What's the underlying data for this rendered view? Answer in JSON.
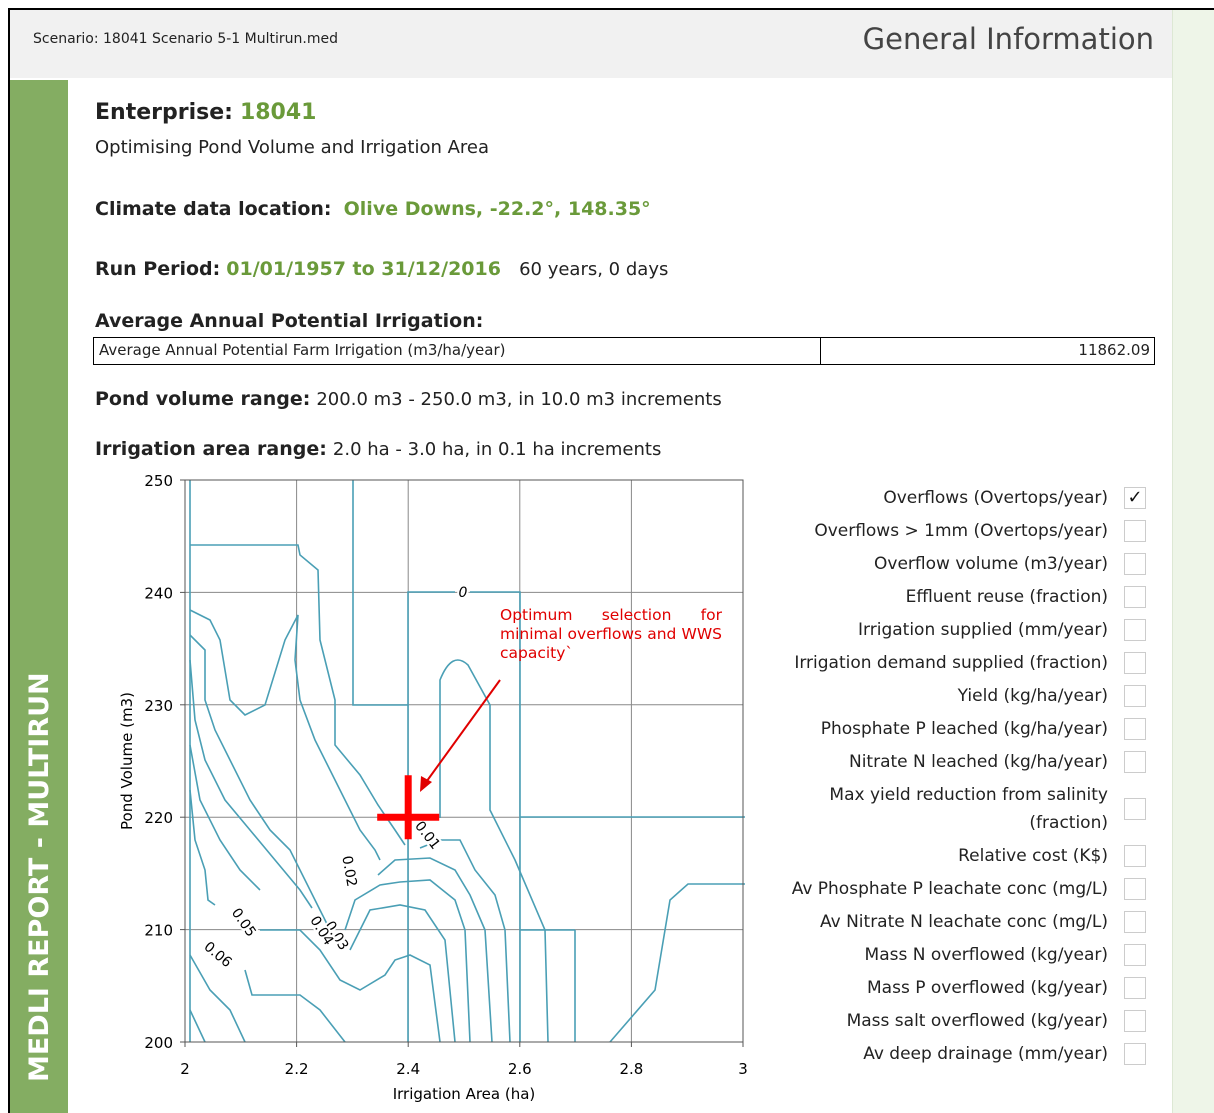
{
  "header": {
    "scenario": "Scenario: 18041 Scenario 5-1 Multirun.med",
    "section": "General Information"
  },
  "sidebar": "MEDLI REPORT - MULTIRUN",
  "enterprise": {
    "label": "Enterprise:",
    "value": "18041",
    "description": "Optimising Pond Volume and Irrigation Area"
  },
  "climate": {
    "label": "Climate data location:",
    "value": "Olive Downs, -22.2°, 148.35°"
  },
  "run_period": {
    "label": "Run Period:",
    "value": "01/01/1957 to 31/12/2016",
    "duration": "60 years, 0 days"
  },
  "irrigation": {
    "heading": "Average Annual Potential Irrigation:",
    "table": {
      "rows": [
        [
          "Average Annual Potential Farm Irrigation (m3/ha/year)",
          "11862.09"
        ]
      ]
    }
  },
  "ranges": [
    {
      "label": "Pond volume range:",
      "value": "200.0 m3 - 250.0 m3, in 10.0 m3 increments"
    },
    {
      "label": "Irrigation area range:",
      "value": "2.0 ha - 3.0 ha, in 0.1 ha increments"
    }
  ],
  "chart_data": {
    "type": "contour",
    "x_label": "Irrigation Area (ha)",
    "y_label": "Pond Volume (m3)",
    "xlim": [
      2,
      3
    ],
    "ylim": [
      200,
      250
    ],
    "xticks": [
      2,
      2.2,
      2.4,
      2.6,
      2.8,
      3
    ],
    "yticks": [
      200,
      210,
      220,
      230,
      240,
      250
    ],
    "grid": true,
    "line_color": "#4a9fb5",
    "contour_labels": [
      0,
      0.01,
      0.02,
      0.03,
      0.04,
      0.05,
      0.06
    ],
    "annotation": "Optimum selection for minimal overflows and WWS capacity`",
    "marker": {
      "x": 2.4,
      "y": 220,
      "color": "#ff0000"
    }
  },
  "options": [
    {
      "label": "Overflows (Overtops/year)",
      "checked": true
    },
    {
      "label": "Overflows > 1mm (Overtops/year)",
      "checked": false
    },
    {
      "label": "Overflow volume (m3/year)",
      "checked": false
    },
    {
      "label": "Effluent reuse (fraction)",
      "checked": false
    },
    {
      "label": "Irrigation supplied (mm/year)",
      "checked": false
    },
    {
      "label": "Irrigation demand supplied (fraction)",
      "checked": false
    },
    {
      "label": "Yield (kg/ha/year)",
      "checked": false
    },
    {
      "label": "Phosphate P leached (kg/ha/year)",
      "checked": false
    },
    {
      "label": "Nitrate N leached (kg/ha/year)",
      "checked": false
    },
    {
      "label": "Max yield reduction from salinity (fraction)",
      "checked": false
    },
    {
      "label": "Relative cost (K$)",
      "checked": false
    },
    {
      "label": "Av Phosphate P leachate conc (mg/L)",
      "checked": false
    },
    {
      "label": "Av Nitrate N leachate conc (mg/L)",
      "checked": false
    },
    {
      "label": "Mass N overflowed (kg/year)",
      "checked": false
    },
    {
      "label": "Mass P overflowed (kg/year)",
      "checked": false
    },
    {
      "label": "Mass salt overflowed (kg/year)",
      "checked": false
    },
    {
      "label": "Av deep drainage (mm/year)",
      "checked": false
    }
  ]
}
